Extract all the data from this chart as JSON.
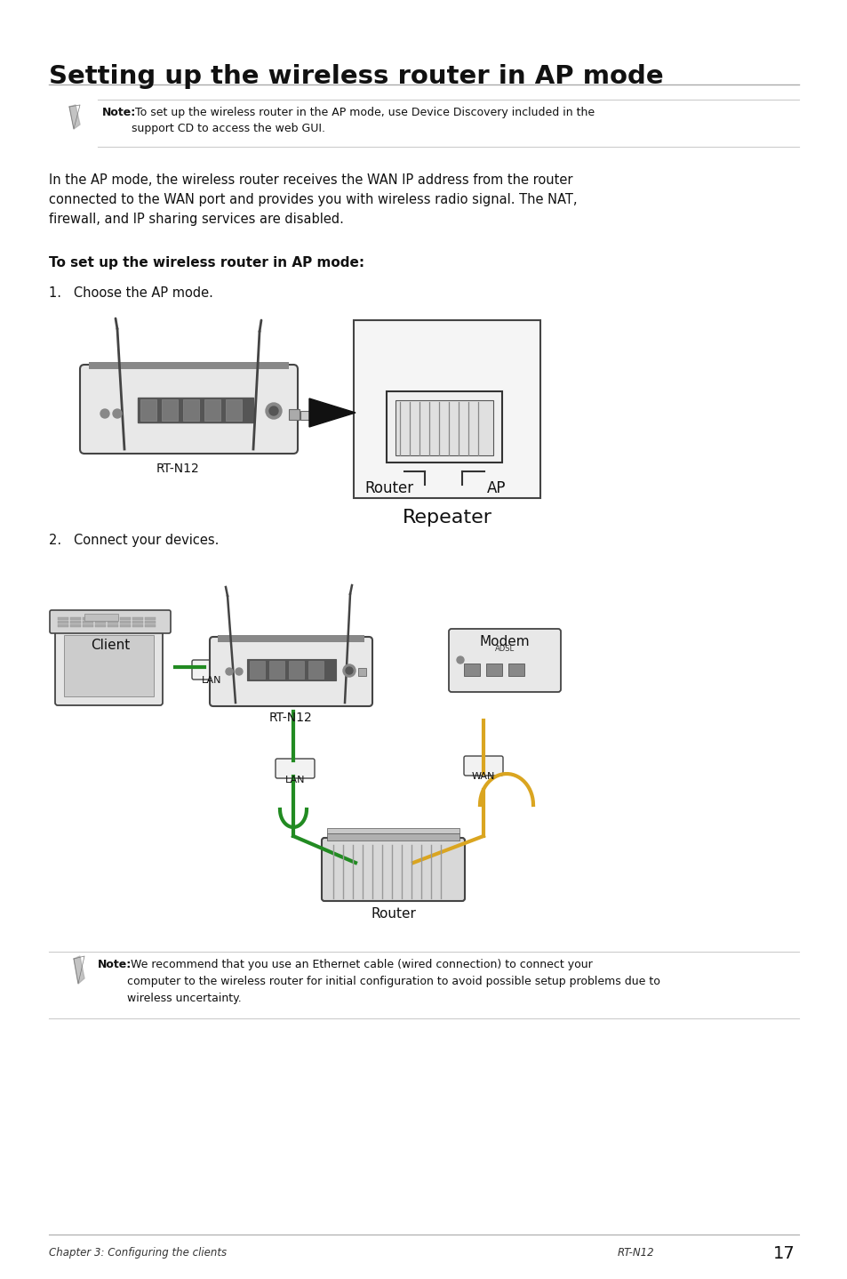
{
  "title": "Setting up the wireless router in AP mode",
  "bg_color": "#ffffff",
  "text_color": "#1a1a1a",
  "note1_bold": "Note:",
  "note1_rest": " To set up the wireless router in the AP mode, use Device Discovery included in the\nsupport CD to access the web GUI.",
  "body_text_line1": "In the AP mode, the wireless router receives the WAN IP address from the router",
  "body_text_line2": "connected to the WAN port and provides you with wireless radio signal. The NAT,",
  "body_text_line3": "firewall, and IP sharing services are disabled.",
  "subtitle": "To set up the wireless router in AP mode:",
  "step1": "1.   Choose the AP mode.",
  "step2": "2.   Connect your devices.",
  "note2_bold": "Note:",
  "note2_rest": " We recommend that you use an Ethernet cable (wired connection) to connect your\ncomputer to the wireless router for initial configuration to avoid possible setup problems due to\nwireless uncertainty.",
  "footer_left": "Chapter 3: Configuring the clients",
  "footer_right": "RT-N12",
  "footer_page": "17",
  "line_color": "#aaaaaa",
  "dark_line": "#cccccc",
  "router_fill": "#e8e8e8",
  "port_fill": "#bbbbbb",
  "green_cable": "#228B22",
  "yellow_cable": "#DAA520"
}
